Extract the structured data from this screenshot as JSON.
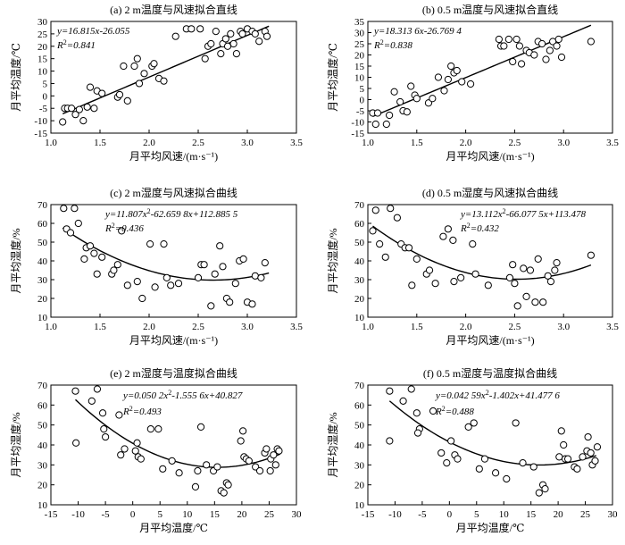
{
  "chart_data": [
    {
      "type": "scatter",
      "title": "(a) 2 m温度与风速拟合直线",
      "xlabel": "月平均风速/(m·s⁻¹)",
      "ylabel": "月平均温度/℃",
      "xlim": [
        1.0,
        3.5
      ],
      "ylim": [
        -15,
        30
      ],
      "xticks": [
        "1.0",
        "1.5",
        "2.0",
        "2.5",
        "3.0",
        "3.5"
      ],
      "yticks": [
        "-15",
        "-10",
        "-5",
        "0",
        "5",
        "10",
        "15",
        "20",
        "25",
        "30"
      ],
      "equation": "y=16.815x-26.055",
      "r2": "R²=0.841",
      "fit": {
        "kind": "linear",
        "coef": [
          16.815,
          -26.055
        ],
        "x_range": [
          1.12,
          3.22
        ]
      },
      "points": [
        [
          1.12,
          -10.5
        ],
        [
          1.14,
          -5
        ],
        [
          1.17,
          -5
        ],
        [
          1.21,
          -5
        ],
        [
          1.25,
          -7.5
        ],
        [
          1.29,
          -5.5
        ],
        [
          1.33,
          -10
        ],
        [
          1.37,
          -4.5
        ],
        [
          1.4,
          3.5
        ],
        [
          1.44,
          -5
        ],
        [
          1.47,
          2
        ],
        [
          1.52,
          1
        ],
        [
          1.68,
          -0.5
        ],
        [
          1.7,
          0.5
        ],
        [
          1.74,
          12
        ],
        [
          1.78,
          -2
        ],
        [
          1.85,
          12
        ],
        [
          1.88,
          15
        ],
        [
          1.9,
          5
        ],
        [
          1.95,
          9
        ],
        [
          2.03,
          12
        ],
        [
          2.05,
          13
        ],
        [
          2.1,
          7
        ],
        [
          2.15,
          6
        ],
        [
          2.27,
          24
        ],
        [
          2.38,
          27
        ],
        [
          2.43,
          27
        ],
        [
          2.52,
          27
        ],
        [
          2.57,
          15
        ],
        [
          2.6,
          20
        ],
        [
          2.63,
          21
        ],
        [
          2.68,
          26
        ],
        [
          2.73,
          17
        ],
        [
          2.75,
          21
        ],
        [
          2.78,
          23
        ],
        [
          2.8,
          20
        ],
        [
          2.83,
          25
        ],
        [
          2.86,
          21
        ],
        [
          2.89,
          17
        ],
        [
          2.93,
          26
        ],
        [
          2.95,
          25
        ],
        [
          3.0,
          27
        ],
        [
          3.05,
          26
        ],
        [
          3.08,
          25
        ],
        [
          3.12,
          22
        ],
        [
          3.18,
          26
        ],
        [
          3.2,
          24
        ]
      ]
    },
    {
      "type": "scatter",
      "title": "(b) 0.5 m温度与风速拟合直线",
      "xlabel": "月平均风速/(m·s⁻¹)",
      "ylabel": "月平均温度/℃",
      "xlim": [
        1.0,
        3.5
      ],
      "ylim": [
        -15,
        35
      ],
      "xticks": [
        "1.0",
        "1.5",
        "2.0",
        "2.5",
        "3.0",
        "3.5"
      ],
      "yticks": [
        "-15",
        "-10",
        "-5",
        "0",
        "5",
        "10",
        "15",
        "20",
        "25",
        "30",
        "35"
      ],
      "equation": "y=18.313 6x-26.769 4",
      "r2": "R²=0.838",
      "fit": {
        "kind": "linear",
        "coef": [
          18.3136,
          -26.7694
        ],
        "x_range": [
          1.05,
          3.28
        ]
      },
      "points": [
        [
          1.05,
          -6
        ],
        [
          1.08,
          -11
        ],
        [
          1.1,
          -6
        ],
        [
          1.19,
          -11
        ],
        [
          1.22,
          -7
        ],
        [
          1.27,
          3.5
        ],
        [
          1.33,
          -1
        ],
        [
          1.36,
          -5
        ],
        [
          1.4,
          -5.5
        ],
        [
          1.44,
          6
        ],
        [
          1.48,
          2
        ],
        [
          1.5,
          0.5
        ],
        [
          1.62,
          -1.5
        ],
        [
          1.66,
          0.5
        ],
        [
          1.72,
          10
        ],
        [
          1.78,
          4
        ],
        [
          1.82,
          9
        ],
        [
          1.85,
          15
        ],
        [
          1.88,
          12
        ],
        [
          1.91,
          13
        ],
        [
          1.96,
          8
        ],
        [
          2.05,
          7
        ],
        [
          2.34,
          27
        ],
        [
          2.36,
          24
        ],
        [
          2.39,
          24
        ],
        [
          2.44,
          27
        ],
        [
          2.48,
          17
        ],
        [
          2.52,
          27
        ],
        [
          2.55,
          24
        ],
        [
          2.57,
          16
        ],
        [
          2.62,
          22
        ],
        [
          2.65,
          21
        ],
        [
          2.7,
          20
        ],
        [
          2.74,
          26
        ],
        [
          2.78,
          25
        ],
        [
          2.82,
          18
        ],
        [
          2.86,
          22
        ],
        [
          2.89,
          26
        ],
        [
          2.93,
          24
        ],
        [
          2.95,
          27
        ],
        [
          2.98,
          19
        ],
        [
          3.28,
          26
        ]
      ]
    },
    {
      "type": "scatter",
      "title": "(c) 2 m湿度与风速拟合曲线",
      "xlabel": "月平均风速/(m·s⁻¹)",
      "ylabel": "月平均湿度/%",
      "xlim": [
        1.0,
        3.5
      ],
      "ylim": [
        10,
        70
      ],
      "xticks": [
        "1.0",
        "1.5",
        "2.0",
        "2.5",
        "3.0",
        "3.5"
      ],
      "yticks": [
        "10",
        "20",
        "30",
        "40",
        "50",
        "60",
        "70"
      ],
      "equation": "y=11.807x²-62.659 8x+112.885 5",
      "r2": "R²=0.436",
      "fit": {
        "kind": "quadratic",
        "coef": [
          11.807,
          -62.6598,
          112.8855
        ],
        "x_range": [
          1.12,
          3.22
        ]
      },
      "points": [
        [
          1.13,
          68
        ],
        [
          1.16,
          57
        ],
        [
          1.2,
          55
        ],
        [
          1.24,
          68
        ],
        [
          1.28,
          60
        ],
        [
          1.34,
          41
        ],
        [
          1.36,
          47
        ],
        [
          1.4,
          48
        ],
        [
          1.44,
          44
        ],
        [
          1.47,
          33
        ],
        [
          1.52,
          42
        ],
        [
          1.62,
          33
        ],
        [
          1.64,
          35
        ],
        [
          1.68,
          38
        ],
        [
          1.72,
          56
        ],
        [
          1.78,
          27
        ],
        [
          1.88,
          29
        ],
        [
          1.93,
          20
        ],
        [
          2.01,
          49
        ],
        [
          2.06,
          26
        ],
        [
          2.15,
          49
        ],
        [
          2.18,
          31
        ],
        [
          2.22,
          27
        ],
        [
          2.3,
          28
        ],
        [
          2.5,
          31
        ],
        [
          2.53,
          38
        ],
        [
          2.56,
          38
        ],
        [
          2.63,
          16
        ],
        [
          2.67,
          33
        ],
        [
          2.72,
          48
        ],
        [
          2.75,
          37
        ],
        [
          2.79,
          20
        ],
        [
          2.82,
          18
        ],
        [
          2.88,
          28
        ],
        [
          2.92,
          40
        ],
        [
          2.96,
          41
        ],
        [
          3.0,
          18
        ],
        [
          3.05,
          17
        ],
        [
          3.08,
          32
        ],
        [
          3.14,
          31
        ],
        [
          3.18,
          39
        ]
      ]
    },
    {
      "type": "scatter",
      "title": "(d) 0.5 m湿度与风速拟合曲线",
      "xlabel": "月平均风速/(m·s⁻¹)",
      "ylabel": "月平均湿度/%",
      "xlim": [
        1.0,
        3.5
      ],
      "ylim": [
        10,
        70
      ],
      "xticks": [
        "1.0",
        "1.5",
        "2.0",
        "2.5",
        "3.0",
        "3.5"
      ],
      "yticks": [
        "10",
        "20",
        "30",
        "40",
        "50",
        "60",
        "70"
      ],
      "equation": "y=13.112x²-66.077 5x+113.478",
      "r2": "R²=0.432",
      "fit": {
        "kind": "quadratic",
        "coef": [
          13.112,
          -66.0775,
          113.478
        ],
        "x_range": [
          1.05,
          3.28
        ]
      },
      "points": [
        [
          1.05,
          56
        ],
        [
          1.08,
          67
        ],
        [
          1.12,
          49
        ],
        [
          1.18,
          42
        ],
        [
          1.23,
          68
        ],
        [
          1.3,
          63
        ],
        [
          1.34,
          49
        ],
        [
          1.38,
          47
        ],
        [
          1.42,
          47
        ],
        [
          1.45,
          27
        ],
        [
          1.5,
          41
        ],
        [
          1.6,
          33
        ],
        [
          1.63,
          35
        ],
        [
          1.69,
          28
        ],
        [
          1.77,
          53
        ],
        [
          1.82,
          57
        ],
        [
          1.87,
          51
        ],
        [
          1.88,
          29
        ],
        [
          1.95,
          31
        ],
        [
          2.07,
          49
        ],
        [
          2.1,
          33
        ],
        [
          2.23,
          27
        ],
        [
          2.45,
          31
        ],
        [
          2.48,
          38
        ],
        [
          2.5,
          28
        ],
        [
          2.53,
          16
        ],
        [
          2.59,
          36
        ],
        [
          2.62,
          21
        ],
        [
          2.66,
          35
        ],
        [
          2.71,
          18
        ],
        [
          2.74,
          41
        ],
        [
          2.79,
          18
        ],
        [
          2.84,
          32
        ],
        [
          2.87,
          29
        ],
        [
          2.91,
          35
        ],
        [
          2.93,
          39
        ],
        [
          3.28,
          43
        ]
      ]
    },
    {
      "type": "scatter",
      "title": "(e) 2 m湿度与温度拟合曲线",
      "xlabel": "月平均温度/℃",
      "ylabel": "月平均湿度/%",
      "xlim": [
        -15,
        30
      ],
      "ylim": [
        10,
        70
      ],
      "xticks": [
        "-15",
        "-10",
        "-5",
        "0",
        "5",
        "10",
        "15",
        "20",
        "25",
        "30"
      ],
      "yticks": [
        "10",
        "20",
        "30",
        "40",
        "50",
        "60",
        "70"
      ],
      "equation": "y=0.050 2x²-1.555 6x+40.827",
      "r2": "R²=0.493",
      "fit": {
        "kind": "quadratic",
        "coef": [
          0.0502,
          -1.5556,
          40.827
        ],
        "x_range": [
          -10.5,
          27
        ]
      },
      "points": [
        [
          -10.5,
          67
        ],
        [
          -10.4,
          41
        ],
        [
          -7.5,
          62
        ],
        [
          -6.5,
          68
        ],
        [
          -5.3,
          48
        ],
        [
          -5,
          44
        ],
        [
          -5.5,
          56
        ],
        [
          -2.5,
          55
        ],
        [
          -2.2,
          35
        ],
        [
          -1.5,
          38
        ],
        [
          0.5,
          37
        ],
        [
          0.8,
          41
        ],
        [
          1,
          34
        ],
        [
          1.5,
          33
        ],
        [
          3.3,
          48
        ],
        [
          4.7,
          48
        ],
        [
          5.5,
          28
        ],
        [
          7.2,
          32
        ],
        [
          8.5,
          26
        ],
        [
          11.5,
          19
        ],
        [
          11.9,
          27
        ],
        [
          12.5,
          49
        ],
        [
          13.5,
          30
        ],
        [
          14.8,
          27
        ],
        [
          15.5,
          29
        ],
        [
          16.2,
          17
        ],
        [
          16.7,
          16
        ],
        [
          17.2,
          21
        ],
        [
          17.5,
          20
        ],
        [
          19.8,
          42
        ],
        [
          20.2,
          47
        ],
        [
          20.4,
          34
        ],
        [
          20.8,
          33
        ],
        [
          21.3,
          32
        ],
        [
          22.5,
          29
        ],
        [
          23.3,
          27
        ],
        [
          24.2,
          36
        ],
        [
          24.5,
          38
        ],
        [
          25.3,
          33
        ],
        [
          25.8,
          35
        ],
        [
          26.2,
          30
        ],
        [
          26.5,
          38
        ],
        [
          26.8,
          37
        ],
        [
          25.2,
          27
        ]
      ]
    },
    {
      "type": "scatter",
      "title": "(f) 0.5 m湿度与温度拟合曲线",
      "xlabel": "月平均温度/℃",
      "ylabel": "月平均湿度/%",
      "xlim": [
        -15,
        30
      ],
      "ylim": [
        10,
        70
      ],
      "xticks": [
        "-15",
        "-10",
        "-5",
        "0",
        "5",
        "10",
        "15",
        "20",
        "25",
        "30"
      ],
      "yticks": [
        "10",
        "20",
        "30",
        "40",
        "50",
        "60",
        "70"
      ],
      "equation": "y=0.042 59x²-1.402x+41.477 6",
      "r2": "R²=0.488",
      "fit": {
        "kind": "quadratic",
        "coef": [
          0.04259,
          -1.402,
          41.4776
        ],
        "x_range": [
          -11,
          27
        ]
      },
      "points": [
        [
          -11,
          67
        ],
        [
          -11,
          42
        ],
        [
          -8.5,
          62
        ],
        [
          -7,
          68
        ],
        [
          -6,
          56
        ],
        [
          -5.5,
          48
        ],
        [
          -5.8,
          46
        ],
        [
          -3,
          57
        ],
        [
          -1.5,
          36
        ],
        [
          -0.5,
          31
        ],
        [
          0.3,
          42
        ],
        [
          1,
          35
        ],
        [
          1.5,
          33
        ],
        [
          3.5,
          49
        ],
        [
          4.5,
          51
        ],
        [
          5.5,
          28
        ],
        [
          6.5,
          33
        ],
        [
          8.5,
          26
        ],
        [
          10.5,
          23
        ],
        [
          12.2,
          51
        ],
        [
          13.5,
          31
        ],
        [
          15.5,
          29
        ],
        [
          16.5,
          16
        ],
        [
          17.2,
          20
        ],
        [
          17.6,
          18
        ],
        [
          20.2,
          34
        ],
        [
          20.6,
          47
        ],
        [
          21,
          40
        ],
        [
          21.3,
          33
        ],
        [
          21.8,
          33
        ],
        [
          23,
          29
        ],
        [
          23.5,
          28
        ],
        [
          24.5,
          34
        ],
        [
          25.3,
          37
        ],
        [
          25.5,
          44
        ],
        [
          26,
          36
        ],
        [
          26.3,
          30
        ],
        [
          26.8,
          32
        ],
        [
          27.2,
          39
        ]
      ]
    }
  ]
}
